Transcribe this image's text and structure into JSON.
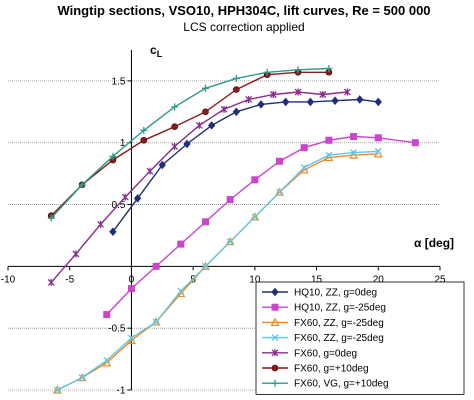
{
  "chart_data": {
    "type": "line",
    "title": "Wingtip sections, VSO10, HPH304C, lift curves, Re = 500 000",
    "subtitle": "LCS correction applied",
    "xlabel": "α [deg]",
    "ylabel": "cL",
    "xlim": [
      -10,
      25
    ],
    "ylim": [
      -1.0,
      1.75
    ],
    "x_ticks": [
      -10,
      -5,
      0,
      5,
      10,
      15,
      20,
      25
    ],
    "y_ticks": [
      -1,
      -0.5,
      0.5,
      1,
      1.5
    ],
    "grid": "horizontal",
    "legend_position": "bottom-right",
    "series": [
      {
        "name": "HQ10, ZZ, g=0deg",
        "color": "#1f2f7a",
        "marker": "diamond",
        "x": [
          -1.5,
          0.5,
          2.5,
          4.5,
          6.5,
          8.5,
          10.5,
          12.5,
          14.5,
          16.5,
          18.5,
          20
        ],
        "y": [
          0.28,
          0.55,
          0.82,
          0.99,
          1.14,
          1.25,
          1.31,
          1.33,
          1.33,
          1.34,
          1.35,
          1.33
        ]
      },
      {
        "name": "HQ10, ZZ, g=-25deg",
        "color": "#cc44cc",
        "marker": "square",
        "x": [
          -2,
          0,
          2,
          4,
          6,
          8,
          10,
          12,
          14,
          16,
          18,
          20,
          23
        ],
        "y": [
          -0.39,
          -0.18,
          0.0,
          0.18,
          0.36,
          0.54,
          0.7,
          0.85,
          0.96,
          1.02,
          1.05,
          1.04,
          1.0
        ]
      },
      {
        "name": "FX60, ZZ, g=-25deg",
        "color": "#f08a24",
        "marker": "triangle",
        "x": [
          -6,
          -4,
          -2,
          0,
          2,
          4,
          6,
          8,
          10,
          12,
          14,
          16,
          18,
          20
        ],
        "y": [
          -1.0,
          -0.9,
          -0.78,
          -0.6,
          -0.45,
          -0.22,
          0.0,
          0.2,
          0.4,
          0.6,
          0.78,
          0.88,
          0.9,
          0.91
        ]
      },
      {
        "name": "FX60, ZZ, g=-25deg",
        "color": "#5fc8e8",
        "marker": "x",
        "x": [
          -6,
          -4,
          -2,
          0,
          2,
          4,
          6,
          8,
          10,
          12,
          14,
          16,
          18,
          20
        ],
        "y": [
          -1.0,
          -0.9,
          -0.76,
          -0.58,
          -0.45,
          -0.2,
          0.0,
          0.2,
          0.4,
          0.6,
          0.8,
          0.9,
          0.92,
          0.93
        ]
      },
      {
        "name": "FX60, g=0deg",
        "color": "#8a2d8a",
        "marker": "star",
        "x": [
          -6.5,
          -4.5,
          -2.5,
          -0.5,
          1.5,
          3.5,
          5.5,
          7.5,
          9.5,
          11.5,
          13.5,
          15.5,
          17.5
        ],
        "y": [
          -0.13,
          0.1,
          0.34,
          0.56,
          0.77,
          0.97,
          1.14,
          1.27,
          1.35,
          1.39,
          1.41,
          1.39,
          1.41
        ]
      },
      {
        "name": "FX60, g=+10deg",
        "color": "#8b1c1c",
        "marker": "circle",
        "x": [
          -6.5,
          -4,
          -1.5,
          1,
          3.5,
          6,
          8.5,
          11,
          13.5,
          16
        ],
        "y": [
          0.41,
          0.66,
          0.86,
          1.02,
          1.13,
          1.25,
          1.43,
          1.55,
          1.57,
          1.57
        ]
      },
      {
        "name": "FX60, VG, g=+10deg",
        "color": "#2e9a8a",
        "marker": "plus",
        "x": [
          -6.5,
          -4,
          -1.5,
          1,
          3.5,
          6,
          8.5,
          11,
          13.5,
          16
        ],
        "y": [
          0.39,
          0.66,
          0.89,
          1.1,
          1.29,
          1.44,
          1.52,
          1.57,
          1.59,
          1.6
        ]
      }
    ]
  }
}
